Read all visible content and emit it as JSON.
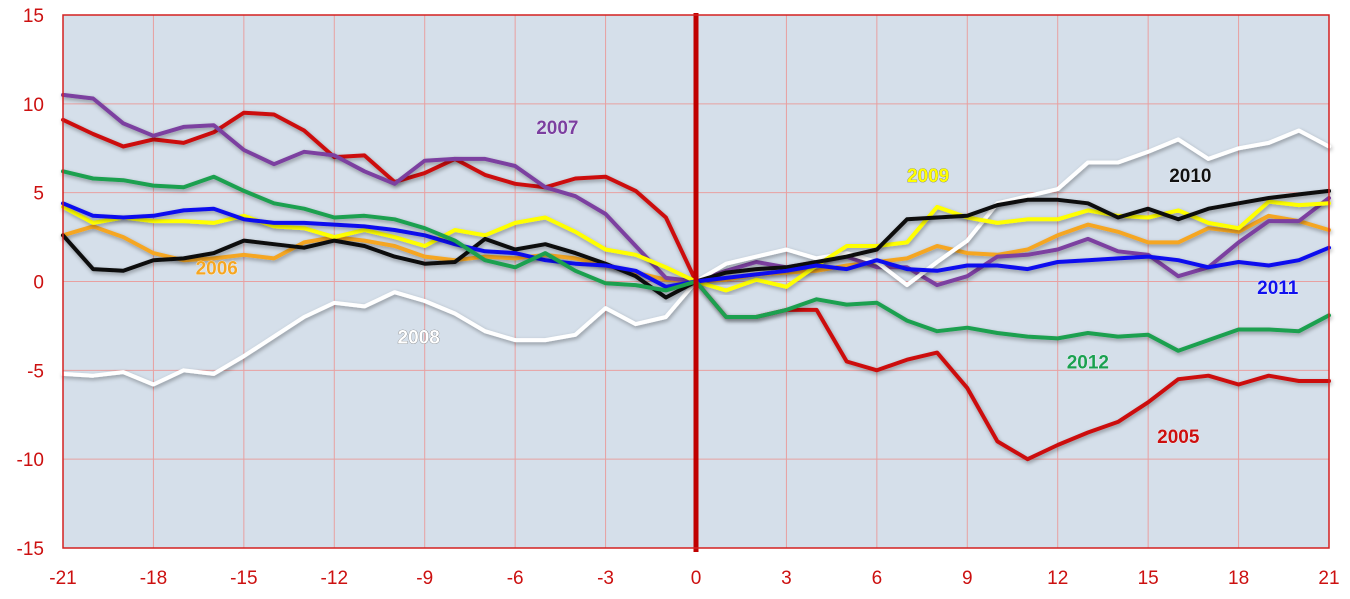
{
  "chart_data": {
    "type": "line",
    "title": "",
    "xlabel": "",
    "ylabel": "",
    "xlim": [
      -21,
      21
    ],
    "ylim": [
      -15,
      15
    ],
    "x_ticks": [
      "-21",
      "-18",
      "-15",
      "-12",
      "-9",
      "-6",
      "-3",
      "0",
      "3",
      "6",
      "9",
      "12",
      "15",
      "18",
      "21"
    ],
    "y_ticks": [
      "15",
      "10",
      "5",
      "0",
      "-5",
      "-10",
      "-15"
    ],
    "grid": true,
    "vline_at": 0,
    "colors": {
      "plot_bg": "#d5dfea",
      "grid": "#e8a0a0",
      "frame": "#d42020",
      "tick_text": "#cc1010",
      "vline": "#c00000"
    },
    "series": [
      {
        "name": "2005",
        "color": "#cc1010",
        "label_color": "#cc1010",
        "x": [
          -21,
          -20,
          -19,
          -18,
          -17,
          -16,
          -15,
          -14,
          -13,
          -12,
          -11,
          -10,
          -9,
          -8,
          -7,
          -6,
          -5,
          -4,
          -3,
          -2,
          -1,
          0,
          1,
          2,
          3,
          4,
          5,
          6,
          7,
          8,
          9,
          10,
          11,
          12,
          13,
          14,
          15,
          16,
          17,
          18,
          19,
          20,
          21
        ],
        "y": [
          9.1,
          8.3,
          7.6,
          8.0,
          7.8,
          8.4,
          9.5,
          9.4,
          8.5,
          7.0,
          7.1,
          5.6,
          6.1,
          6.9,
          6.0,
          5.5,
          5.3,
          5.8,
          5.9,
          5.1,
          3.6,
          0,
          -2.0,
          -2.0,
          -1.6,
          -1.6,
          -4.5,
          -5.0,
          -4.4,
          -4.0,
          -6.0,
          -9.0,
          -10.0,
          -9.2,
          -8.5,
          -7.9,
          -6.8,
          -5.5,
          -5.3,
          -5.8,
          -5.3,
          -5.6,
          -5.6
        ]
      },
      {
        "name": "2006",
        "color": "#f5a623",
        "label_color": "#f5a623",
        "x": [
          -21,
          -20,
          -19,
          -18,
          -17,
          -16,
          -15,
          -14,
          -13,
          -12,
          -11,
          -10,
          -9,
          -8,
          -7,
          -6,
          -5,
          -4,
          -3,
          -2,
          -1,
          0,
          1,
          2,
          3,
          4,
          5,
          6,
          7,
          8,
          9,
          10,
          11,
          12,
          13,
          14,
          15,
          16,
          17,
          18,
          19,
          20,
          21
        ],
        "y": [
          2.6,
          3.1,
          2.5,
          1.6,
          1.2,
          1.3,
          1.5,
          1.3,
          2.2,
          2.5,
          2.3,
          2.0,
          1.4,
          1.2,
          1.4,
          1.3,
          1.5,
          1.3,
          0.9,
          0.5,
          0.1,
          0,
          0.1,
          0.4,
          0.5,
          0.6,
          0.9,
          1.1,
          1.3,
          2.0,
          1.6,
          1.5,
          1.8,
          2.6,
          3.2,
          2.8,
          2.2,
          2.2,
          3.0,
          2.8,
          3.7,
          3.4,
          2.9
        ]
      },
      {
        "name": "2007",
        "color": "#7b3fa0",
        "label_color": "#7b3fa0",
        "x": [
          -21,
          -20,
          -19,
          -18,
          -17,
          -16,
          -15,
          -14,
          -13,
          -12,
          -11,
          -10,
          -9,
          -8,
          -7,
          -6,
          -5,
          -4,
          -3,
          -2,
          -1,
          0,
          1,
          2,
          3,
          4,
          5,
          6,
          7,
          8,
          9,
          10,
          11,
          12,
          13,
          14,
          15,
          16,
          17,
          18,
          19,
          20,
          21
        ],
        "y": [
          10.5,
          10.3,
          8.9,
          8.2,
          8.7,
          8.8,
          7.4,
          6.6,
          7.3,
          7.1,
          6.2,
          5.5,
          6.8,
          6.9,
          6.9,
          6.5,
          5.3,
          4.8,
          3.8,
          2.0,
          0.2,
          0,
          0.6,
          1.1,
          0.8,
          1.1,
          1.4,
          0.8,
          0.8,
          -0.2,
          0.3,
          1.4,
          1.5,
          1.8,
          2.4,
          1.7,
          1.5,
          0.3,
          0.8,
          2.2,
          3.4,
          3.4,
          4.7
        ]
      },
      {
        "name": "2008",
        "color": "#ffffff",
        "label_color": "#ffffff",
        "x": [
          -21,
          -20,
          -19,
          -18,
          -17,
          -16,
          -15,
          -14,
          -13,
          -12,
          -11,
          -10,
          -9,
          -8,
          -7,
          -6,
          -5,
          -4,
          -3,
          -2,
          -1,
          0,
          1,
          2,
          3,
          4,
          5,
          6,
          7,
          8,
          9,
          10,
          11,
          12,
          13,
          14,
          15,
          16,
          17,
          18,
          19,
          20,
          21
        ],
        "y": [
          -5.2,
          -5.3,
          -5.1,
          -5.8,
          -5.0,
          -5.2,
          -4.2,
          -3.1,
          -2.0,
          -1.2,
          -1.4,
          -0.6,
          -1.1,
          -1.8,
          -2.8,
          -3.3,
          -3.3,
          -3.0,
          -1.5,
          -2.4,
          -2.0,
          0,
          1.0,
          1.4,
          1.8,
          1.3,
          1.6,
          1.1,
          -0.2,
          1.1,
          2.3,
          4.4,
          4.8,
          5.2,
          6.7,
          6.7,
          7.3,
          8.0,
          6.9,
          7.5,
          7.8,
          8.5,
          7.6
        ]
      },
      {
        "name": "2009",
        "color": "#ffff00",
        "label_color": "#ffff00",
        "x": [
          -21,
          -20,
          -19,
          -18,
          -17,
          -16,
          -15,
          -14,
          -13,
          -12,
          -11,
          -10,
          -9,
          -8,
          -7,
          -6,
          -5,
          -4,
          -3,
          -2,
          -1,
          0,
          1,
          2,
          3,
          4,
          5,
          6,
          7,
          8,
          9,
          10,
          11,
          12,
          13,
          14,
          15,
          16,
          17,
          18,
          19,
          20,
          21
        ],
        "y": [
          4.2,
          3.3,
          3.6,
          3.4,
          3.4,
          3.3,
          3.7,
          3.1,
          3.0,
          2.5,
          2.9,
          2.5,
          2.0,
          2.9,
          2.6,
          3.3,
          3.6,
          2.8,
          1.8,
          1.5,
          0.8,
          0,
          -0.5,
          0.1,
          -0.3,
          0.9,
          2.0,
          2.0,
          2.2,
          4.2,
          3.6,
          3.3,
          3.5,
          3.5,
          4.0,
          3.7,
          3.6,
          4.0,
          3.3,
          3.0,
          4.5,
          4.3,
          4.4
        ]
      },
      {
        "name": "2010",
        "color": "#111111",
        "label_color": "#111111",
        "x": [
          -21,
          -20,
          -19,
          -18,
          -17,
          -16,
          -15,
          -14,
          -13,
          -12,
          -11,
          -10,
          -9,
          -8,
          -7,
          -6,
          -5,
          -4,
          -3,
          -2,
          -1,
          0,
          1,
          2,
          3,
          4,
          5,
          6,
          7,
          8,
          9,
          10,
          11,
          12,
          13,
          14,
          15,
          16,
          17,
          18,
          19,
          20,
          21
        ],
        "y": [
          2.6,
          0.7,
          0.6,
          1.2,
          1.3,
          1.6,
          2.3,
          2.1,
          1.9,
          2.3,
          2.0,
          1.4,
          1.0,
          1.1,
          2.4,
          1.8,
          2.1,
          1.6,
          1.0,
          0.3,
          -0.9,
          0,
          0.5,
          0.7,
          0.8,
          1.1,
          1.4,
          1.8,
          3.5,
          3.6,
          3.7,
          4.3,
          4.6,
          4.6,
          4.4,
          3.6,
          4.1,
          3.5,
          4.1,
          4.4,
          4.7,
          4.9,
          5.1
        ]
      },
      {
        "name": "2011",
        "color": "#1010ee",
        "label_color": "#1010ee",
        "x": [
          -21,
          -20,
          -19,
          -18,
          -17,
          -16,
          -15,
          -14,
          -13,
          -12,
          -11,
          -10,
          -9,
          -8,
          -7,
          -6,
          -5,
          -4,
          -3,
          -2,
          -1,
          0,
          1,
          2,
          3,
          4,
          5,
          6,
          7,
          8,
          9,
          10,
          11,
          12,
          13,
          14,
          15,
          16,
          17,
          18,
          19,
          20,
          21
        ],
        "y": [
          4.4,
          3.7,
          3.6,
          3.7,
          4.0,
          4.1,
          3.5,
          3.3,
          3.3,
          3.2,
          3.1,
          2.9,
          2.6,
          2.1,
          1.7,
          1.6,
          1.2,
          1.0,
          0.9,
          0.6,
          -0.3,
          0,
          0.2,
          0.4,
          0.6,
          0.9,
          0.7,
          1.2,
          0.7,
          0.6,
          0.9,
          0.9,
          0.7,
          1.1,
          1.2,
          1.3,
          1.4,
          1.2,
          0.8,
          1.1,
          0.9,
          1.2,
          1.9
        ]
      },
      {
        "name": "2012",
        "color": "#1aa050",
        "label_color": "#1aa050",
        "x": [
          -21,
          -20,
          -19,
          -18,
          -17,
          -16,
          -15,
          -14,
          -13,
          -12,
          -11,
          -10,
          -9,
          -8,
          -7,
          -6,
          -5,
          -4,
          -3,
          -2,
          -1,
          0,
          1,
          2,
          3,
          4,
          5,
          6,
          7,
          8,
          9,
          10,
          11,
          12,
          13,
          14,
          15,
          16,
          17,
          18,
          19,
          20,
          21
        ],
        "y": [
          6.2,
          5.8,
          5.7,
          5.4,
          5.3,
          5.9,
          5.1,
          4.4,
          4.1,
          3.6,
          3.7,
          3.5,
          3.0,
          2.3,
          1.2,
          0.8,
          1.6,
          0.6,
          -0.1,
          -0.2,
          -0.5,
          0,
          -2.0,
          -2.0,
          -1.6,
          -1.0,
          -1.3,
          -1.2,
          -2.2,
          -2.8,
          -2.6,
          -2.9,
          -3.1,
          -3.2,
          -2.9,
          -3.1,
          -3.0,
          -3.9,
          -3.3,
          -2.7,
          -2.7,
          -2.8,
          -1.9
        ]
      }
    ],
    "annotations": [
      {
        "text": "2005",
        "series": "2005",
        "x": 16,
        "y": -9.1
      },
      {
        "text": "2006",
        "series": "2006",
        "x": -15.9,
        "y": 0.4
      },
      {
        "text": "2007",
        "series": "2007",
        "x": -4.6,
        "y": 8.3
      },
      {
        "text": "2008",
        "series": "2008",
        "x": -9.2,
        "y": -3.5
      },
      {
        "text": "2009",
        "series": "2009",
        "x": 7.7,
        "y": 5.6
      },
      {
        "text": "2010",
        "series": "2010",
        "x": 16.4,
        "y": 5.6
      },
      {
        "text": "2011",
        "series": "2011",
        "x": 19.3,
        "y": -0.7
      },
      {
        "text": "2012",
        "series": "2012",
        "x": 13,
        "y": -4.9
      }
    ]
  }
}
